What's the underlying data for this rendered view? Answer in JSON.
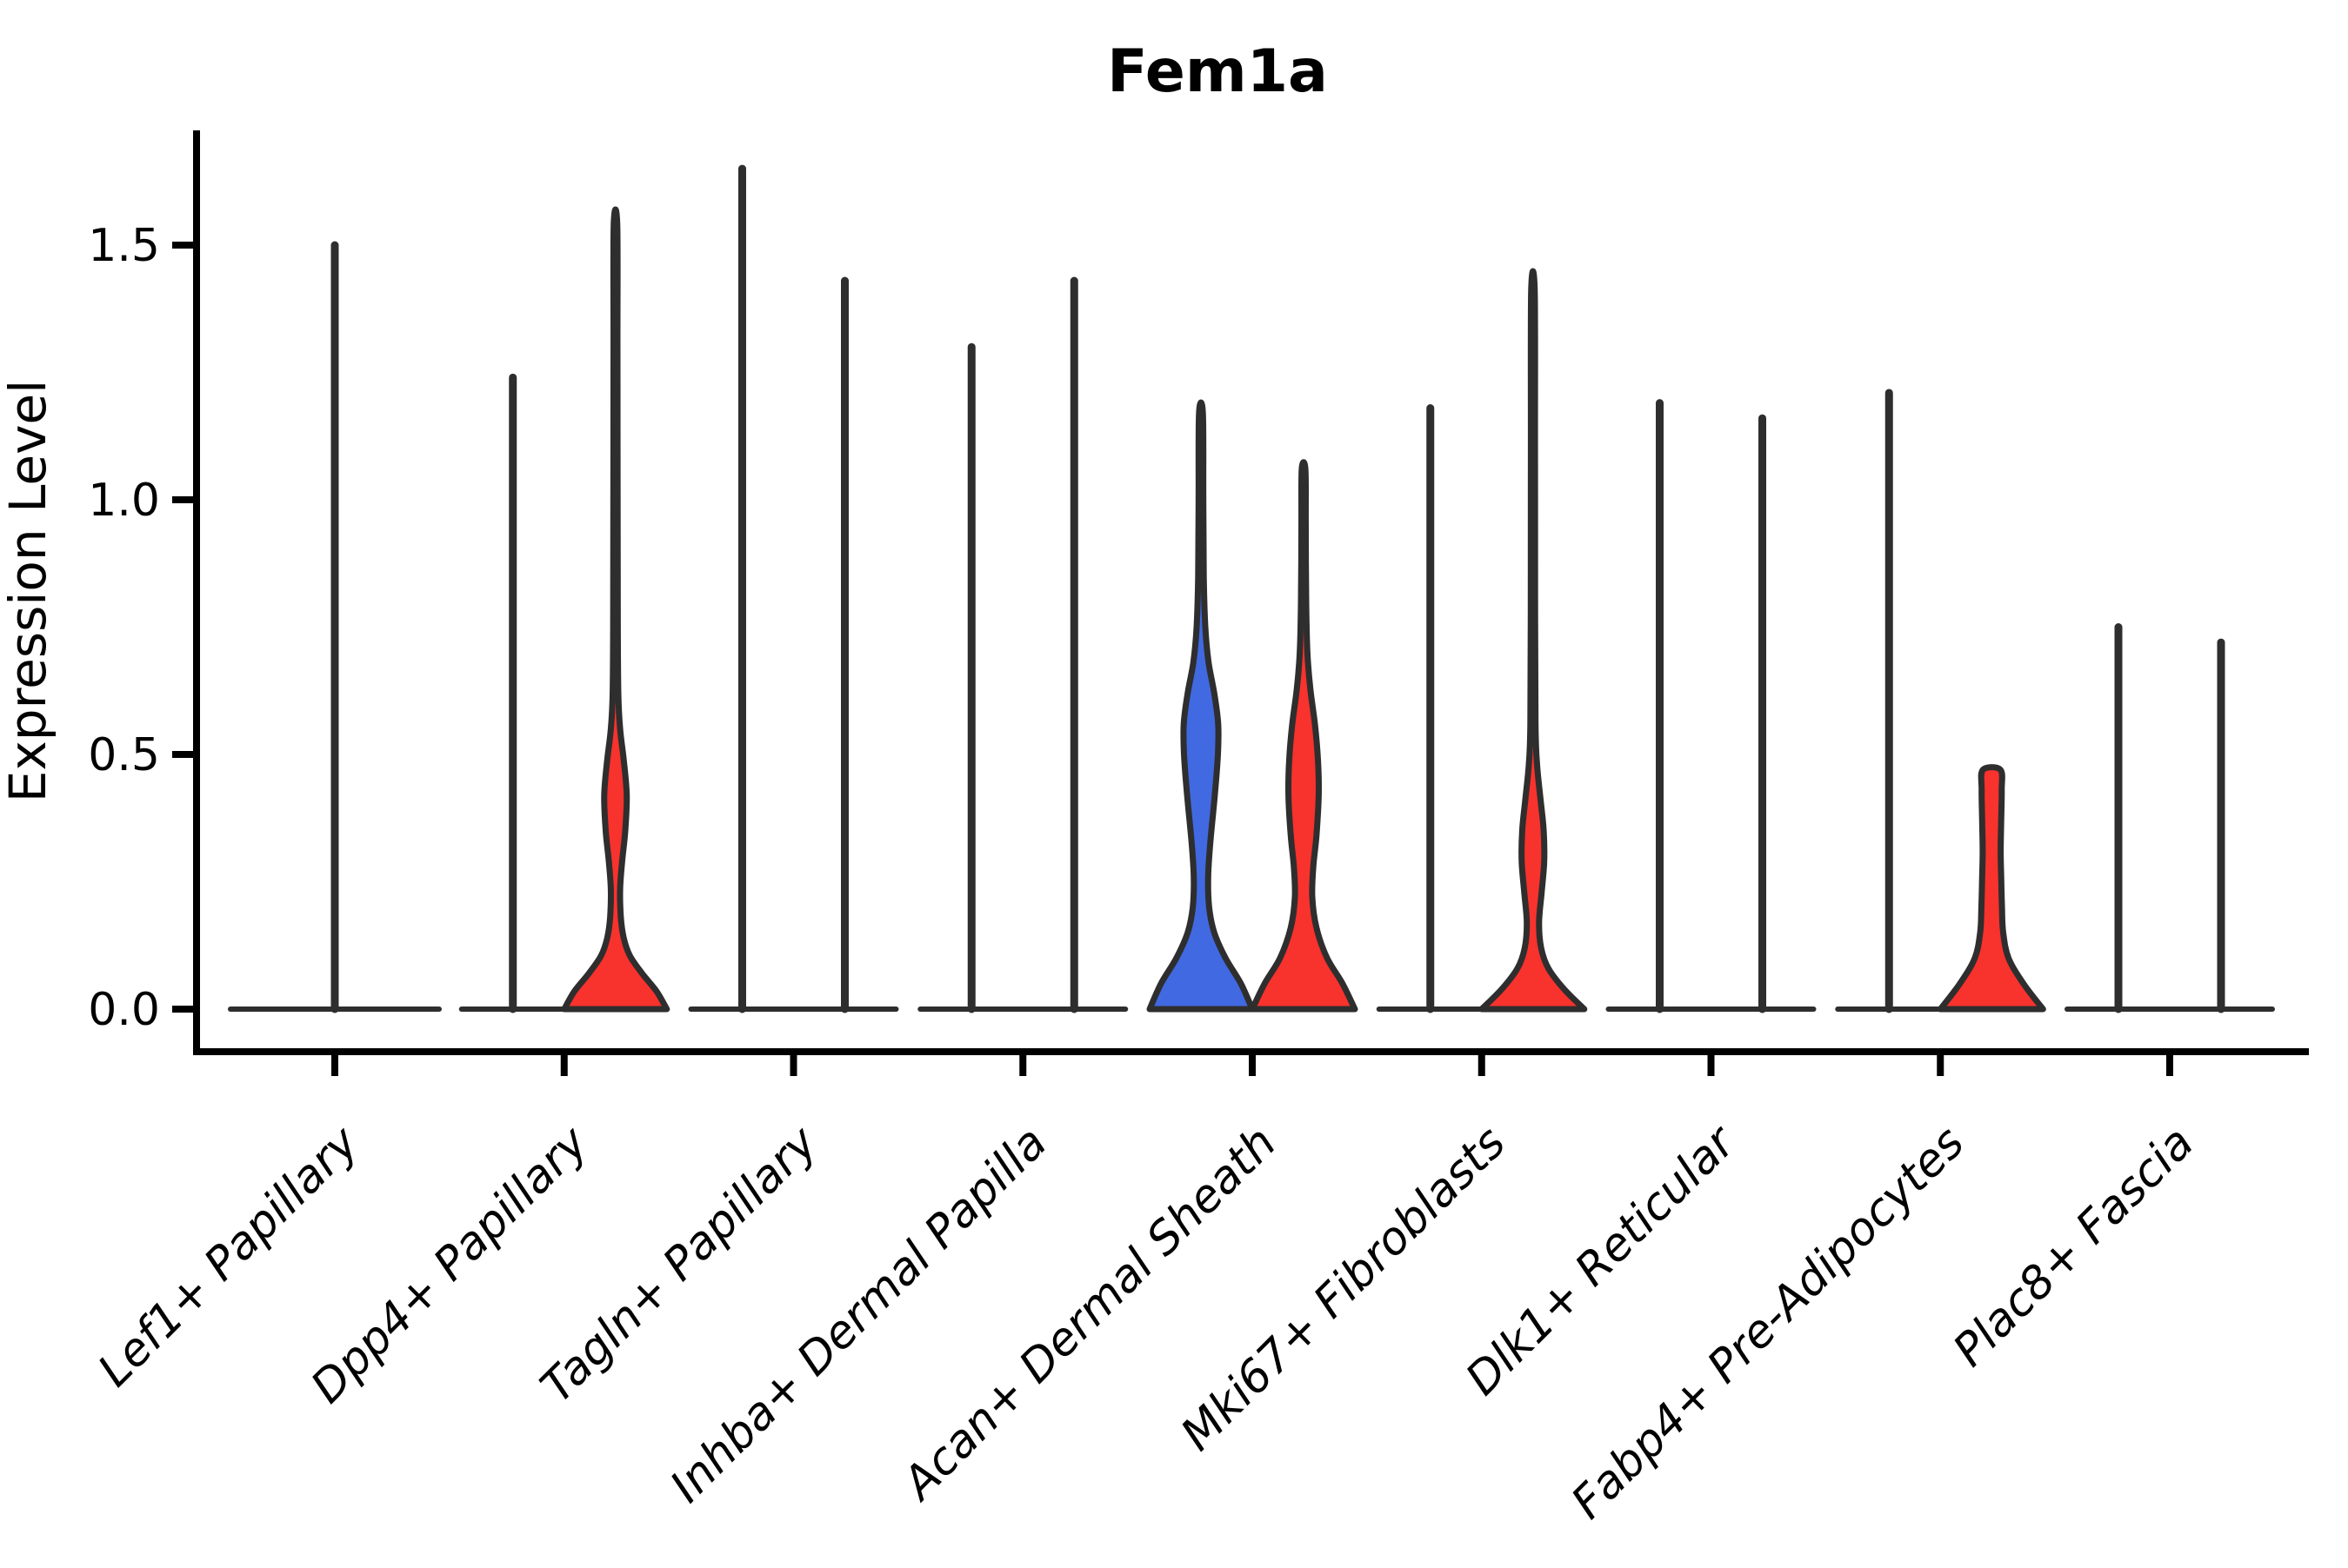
{
  "figure": {
    "title": "Fem1a",
    "ylabel": "Expression Level",
    "colors": {
      "blue": "#4169e1",
      "red": "#f8322d",
      "stroke": "#2e2e2e",
      "background": "#ffffff",
      "text": "#000000"
    }
  },
  "chart_data": {
    "type": "violin",
    "title": "Fem1a",
    "xlabel": "",
    "ylabel": "Expression Level",
    "y_ticks": [
      0.0,
      0.5,
      1.0,
      1.5
    ],
    "y_tick_labels": [
      "0.0",
      "0.5",
      "1.0",
      "1.5"
    ],
    "ylim": [
      -0.08,
      1.72
    ],
    "grid": false,
    "legend": "none",
    "groups": [
      {
        "position": "left",
        "color_when_filled": "#4169e1"
      },
      {
        "position": "right",
        "color_when_filled": "#f8322d"
      }
    ],
    "categories": [
      {
        "label": "Lef1+ Papillary",
        "violins": [
          {
            "position": "center",
            "style": "spike",
            "fill": null,
            "max": 1.5
          }
        ]
      },
      {
        "label": "Dpp4+ Papillary",
        "violins": [
          {
            "position": "left",
            "style": "spike",
            "fill": null,
            "max": 1.24
          },
          {
            "position": "right",
            "style": "violin",
            "fill": "red",
            "max": 1.54,
            "profile": [
              [
                0,
                1.0
              ],
              [
                0.035,
                0.8
              ],
              [
                0.07,
                0.52
              ],
              [
                0.105,
                0.28
              ],
              [
                0.14,
                0.16
              ],
              [
                0.18,
                0.105
              ],
              [
                0.235,
                0.09
              ],
              [
                0.29,
                0.13
              ],
              [
                0.35,
                0.19
              ],
              [
                0.42,
                0.22
              ],
              [
                0.49,
                0.16
              ],
              [
                0.55,
                0.09
              ],
              [
                0.62,
                0.055
              ],
              [
                0.75,
                0.045
              ],
              [
                1.1,
                0.04
              ],
              [
                1.3,
                0.038
              ],
              [
                1.54,
                0.034
              ]
            ]
          }
        ]
      },
      {
        "label": "Tagln+ Papillary",
        "violins": [
          {
            "position": "left",
            "style": "spike",
            "fill": null,
            "max": 1.65
          },
          {
            "position": "right",
            "style": "spike",
            "fill": null,
            "max": 1.43
          }
        ]
      },
      {
        "label": "Inhba+ Dermal Papilla",
        "violins": [
          {
            "position": "left",
            "style": "spike",
            "fill": null,
            "max": 1.3
          },
          {
            "position": "right",
            "style": "spike",
            "fill": null,
            "max": 1.43
          }
        ]
      },
      {
        "label": "Acan+ Dermal Sheath",
        "violins": [
          {
            "position": "left",
            "style": "violin",
            "fill": "blue",
            "max": 1.17,
            "profile": [
              [
                0,
                1.0
              ],
              [
                0.05,
                0.78
              ],
              [
                0.1,
                0.48
              ],
              [
                0.15,
                0.26
              ],
              [
                0.2,
                0.16
              ],
              [
                0.26,
                0.14
              ],
              [
                0.33,
                0.185
              ],
              [
                0.42,
                0.27
              ],
              [
                0.5,
                0.33
              ],
              [
                0.56,
                0.335
              ],
              [
                0.62,
                0.26
              ],
              [
                0.68,
                0.15
              ],
              [
                0.75,
                0.085
              ],
              [
                0.85,
                0.055
              ],
              [
                1.0,
                0.045
              ],
              [
                1.17,
                0.038
              ]
            ]
          },
          {
            "position": "right",
            "style": "violin",
            "fill": "red",
            "max": 1.06,
            "profile": [
              [
                0,
                1.0
              ],
              [
                0.05,
                0.76
              ],
              [
                0.1,
                0.46
              ],
              [
                0.16,
                0.25
              ],
              [
                0.22,
                0.17
              ],
              [
                0.28,
                0.19
              ],
              [
                0.34,
                0.25
              ],
              [
                0.42,
                0.295
              ],
              [
                0.49,
                0.28
              ],
              [
                0.56,
                0.22
              ],
              [
                0.63,
                0.13
              ],
              [
                0.7,
                0.075
              ],
              [
                0.8,
                0.05
              ],
              [
                0.95,
                0.042
              ],
              [
                1.06,
                0.036
              ]
            ]
          }
        ]
      },
      {
        "label": "Mki67+ Fibroblasts",
        "violins": [
          {
            "position": "left",
            "style": "spike",
            "fill": null,
            "max": 1.18
          },
          {
            "position": "right",
            "style": "violin",
            "fill": "red",
            "max": 1.41,
            "profile": [
              [
                0,
                1.0
              ],
              [
                0.04,
                0.6
              ],
              [
                0.08,
                0.3
              ],
              [
                0.12,
                0.16
              ],
              [
                0.17,
                0.12
              ],
              [
                0.23,
                0.17
              ],
              [
                0.29,
                0.22
              ],
              [
                0.35,
                0.21
              ],
              [
                0.41,
                0.15
              ],
              [
                0.48,
                0.08
              ],
              [
                0.56,
                0.05
              ],
              [
                0.8,
                0.042
              ],
              [
                1.1,
                0.04
              ],
              [
                1.41,
                0.034
              ]
            ]
          }
        ]
      },
      {
        "label": "Dlk1+ Reticular",
        "violins": [
          {
            "position": "left",
            "style": "spike",
            "fill": null,
            "max": 1.19
          },
          {
            "position": "right",
            "style": "spike",
            "fill": null,
            "max": 1.16
          }
        ]
      },
      {
        "label": "Fabp4+ Pre-Adipocytes",
        "violins": [
          {
            "position": "left",
            "style": "spike",
            "fill": null,
            "max": 1.21
          },
          {
            "position": "right",
            "style": "violin",
            "fill": "red",
            "max": 0.47,
            "blunt_top": true,
            "profile": [
              [
                0,
                1.0
              ],
              [
                0.05,
                0.62
              ],
              [
                0.1,
                0.33
              ],
              [
                0.15,
                0.225
              ],
              [
                0.2,
                0.2
              ],
              [
                0.26,
                0.185
              ],
              [
                0.31,
                0.175
              ],
              [
                0.37,
                0.185
              ],
              [
                0.43,
                0.195
              ],
              [
                0.47,
                0.17
              ]
            ]
          }
        ]
      },
      {
        "label": "Plac8+ Fascia",
        "violins": [
          {
            "position": "left",
            "style": "spike",
            "fill": null,
            "max": 0.75
          },
          {
            "position": "right",
            "style": "spike",
            "fill": null,
            "max": 0.72
          }
        ]
      }
    ]
  }
}
